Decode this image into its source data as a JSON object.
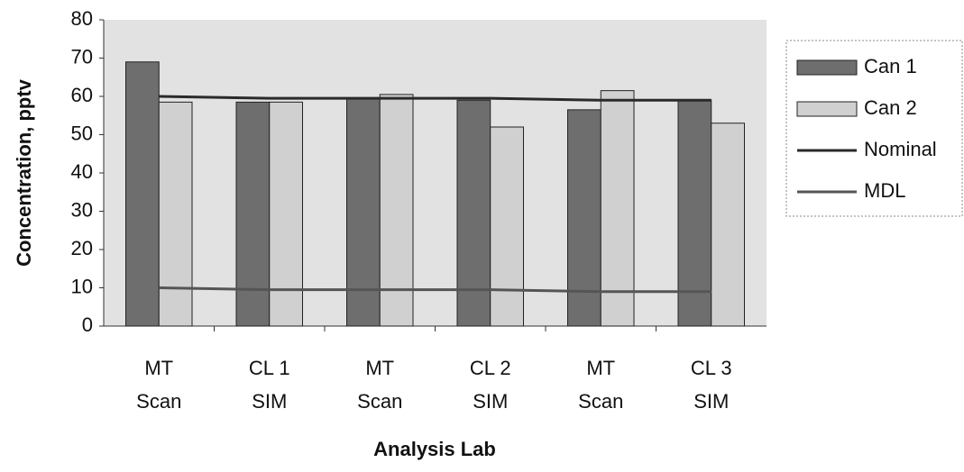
{
  "chart_data": {
    "type": "bar",
    "xlabel": "Analysis Lab",
    "ylabel": "Concentration, pptv",
    "categories": [
      [
        "MT",
        "Scan"
      ],
      [
        "CL 1",
        "SIM"
      ],
      [
        "MT",
        "Scan"
      ],
      [
        "CL 2",
        "SIM"
      ],
      [
        "MT",
        "Scan"
      ],
      [
        "CL 3",
        "SIM"
      ]
    ],
    "series": [
      {
        "name": "Can 1",
        "color": "#6e6e6e",
        "kind": "bar",
        "values": [
          69,
          58.5,
          59.5,
          59,
          56.5,
          59
        ]
      },
      {
        "name": "Can 2",
        "color": "#d0d0d0",
        "kind": "bar",
        "values": [
          58.5,
          58.5,
          60.5,
          52,
          61.5,
          53
        ]
      },
      {
        "name": "Nominal",
        "color": "#2a2a2a",
        "kind": "line",
        "values": [
          60,
          59.5,
          59.5,
          59.5,
          59,
          59
        ]
      },
      {
        "name": "MDL",
        "color": "#555555",
        "kind": "line",
        "values": [
          10,
          9.5,
          9.5,
          9.5,
          9,
          9
        ]
      }
    ],
    "ylim": [
      0,
      80
    ],
    "yticks": [
      0,
      10,
      20,
      30,
      40,
      50,
      60,
      70,
      80
    ],
    "legend": "right"
  }
}
